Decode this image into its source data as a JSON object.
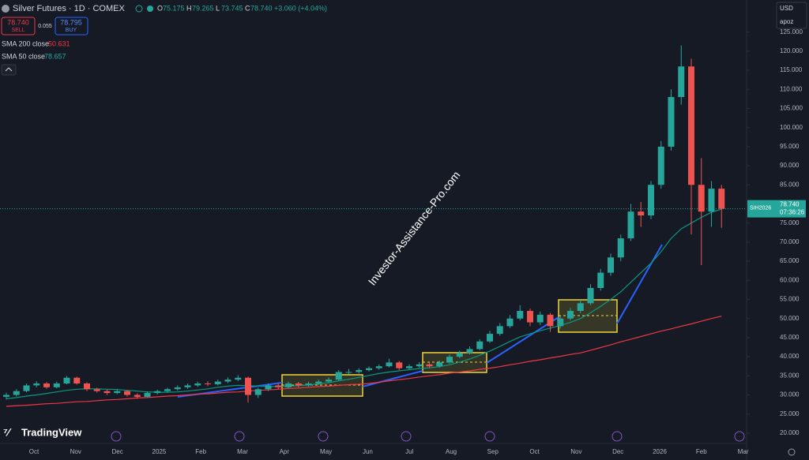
{
  "header": {
    "symbol": "Silver Futures · 1D · COMEX",
    "ohlc": [
      {
        "label": "O",
        "value": "75.175"
      },
      {
        "label": "H",
        "value": "79.265"
      },
      {
        "label": "L",
        "value": "73.745"
      },
      {
        "label": "C",
        "value": "78.740"
      }
    ],
    "change": "+3.060 (+4.04%)"
  },
  "trade": {
    "sell_price": "78.740",
    "sell": "SELL",
    "spread": "0.055",
    "buy_price": "78.795",
    "buy": "BUY"
  },
  "indicator_values": [
    "50.631",
    "78.657"
  ],
  "watermark": "Investor-Assistance-Pro.com",
  "currency": "USD",
  "account": "apoz",
  "last_price_box": {
    "symbol": "SIH2026",
    "price": "78.740",
    "countdown": "07:36:26"
  },
  "brand": "TradingView",
  "chart_data": {
    "type": "candlestick",
    "ylim": [
      17.3,
      133.4
    ],
    "yticks": [
      {
        "value": 20,
        "label": "20.000"
      },
      {
        "value": 25,
        "label": "25.000"
      },
      {
        "value": 30,
        "label": "30.000"
      },
      {
        "value": 35,
        "label": "35.000"
      },
      {
        "value": 40,
        "label": "40.000"
      },
      {
        "value": 45,
        "label": "45.000"
      },
      {
        "value": 50,
        "label": "50.000"
      },
      {
        "value": 55,
        "label": "55.000"
      },
      {
        "value": 60,
        "label": "60.000"
      },
      {
        "value": 65,
        "label": "65.000"
      },
      {
        "value": 70,
        "label": "70.000"
      },
      {
        "value": 75,
        "label": "75.000"
      },
      {
        "value": 80,
        "label": "80.000"
      },
      {
        "value": 85,
        "label": "85.000"
      },
      {
        "value": 90,
        "label": "90.000"
      },
      {
        "value": 95,
        "label": "95.000"
      },
      {
        "value": 100,
        "label": "100.000"
      },
      {
        "value": 105,
        "label": "105.000"
      },
      {
        "value": 110,
        "label": "110.000"
      },
      {
        "value": 115,
        "label": "115.000"
      },
      {
        "value": 120,
        "label": "120.000"
      },
      {
        "value": 125,
        "label": "125.000"
      }
    ],
    "time_labels": [
      "Oct",
      "Nov",
      "Dec",
      "2025",
      "Feb",
      "Mar",
      "Apr",
      "May",
      "Jun",
      "Jul",
      "Aug",
      "Sep",
      "Oct",
      "Nov",
      "Dec",
      "2026",
      "Feb",
      "Mar"
    ],
    "up_color": "#26a69a",
    "down_color": "#ef5350",
    "last_price": 78.74,
    "candles": [
      [
        29.5,
        30.6,
        28.8,
        30
      ],
      [
        30,
        31.5,
        29.6,
        31
      ],
      [
        31,
        33,
        30.7,
        32.5
      ],
      [
        32.5,
        33.6,
        32,
        33
      ],
      [
        33,
        33.4,
        31.6,
        32
      ],
      [
        32,
        33.5,
        31.7,
        33
      ],
      [
        33,
        35,
        32.8,
        34.5
      ],
      [
        34.5,
        34.8,
        32.7,
        33
      ],
      [
        33,
        33.3,
        31,
        31.5
      ],
      [
        31.5,
        31.9,
        30.6,
        31
      ],
      [
        31,
        31.4,
        30,
        30.5
      ],
      [
        30.5,
        31.6,
        30.2,
        31
      ],
      [
        31,
        31.3,
        29.6,
        30
      ],
      [
        30,
        30.4,
        29,
        29.5
      ],
      [
        29.5,
        30.9,
        29.3,
        30.5
      ],
      [
        30.5,
        31.4,
        30.1,
        31
      ],
      [
        31,
        31.9,
        30.6,
        31.5
      ],
      [
        31.5,
        32.5,
        31.1,
        32
      ],
      [
        32,
        33,
        31.6,
        32.5
      ],
      [
        32.5,
        33.5,
        32.1,
        33
      ],
      [
        33,
        33.6,
        32.3,
        32.8
      ],
      [
        32.8,
        34,
        32.5,
        33.5
      ],
      [
        33.5,
        34.6,
        33.1,
        34
      ],
      [
        34,
        35.2,
        33.6,
        34.5
      ],
      [
        34.5,
        34.8,
        28,
        30
      ],
      [
        30,
        31.9,
        29.2,
        31.5
      ],
      [
        31.5,
        33,
        31,
        32.5
      ],
      [
        32.5,
        33,
        31.5,
        32
      ],
      [
        32,
        33.5,
        31.6,
        33
      ],
      [
        33,
        33.4,
        32,
        32.5
      ],
      [
        32.5,
        33.5,
        32.1,
        33
      ],
      [
        33,
        34,
        32.6,
        33.5
      ],
      [
        33.5,
        34.6,
        33.1,
        34
      ],
      [
        34,
        36.5,
        33.8,
        36
      ],
      [
        36,
        36.8,
        35.4,
        36
      ],
      [
        36,
        37,
        35.6,
        36.5
      ],
      [
        36.5,
        37.5,
        36.1,
        37
      ],
      [
        37,
        38,
        36.6,
        37.5
      ],
      [
        37.5,
        39.5,
        37.2,
        38.5
      ],
      [
        38.5,
        38.9,
        36.5,
        37
      ],
      [
        37,
        38,
        36.6,
        37.5
      ],
      [
        37.5,
        38.6,
        37.1,
        38
      ],
      [
        38,
        38.4,
        37,
        37.5
      ],
      [
        37.5,
        39,
        37.1,
        38.5
      ],
      [
        38.5,
        40.6,
        38.2,
        40
      ],
      [
        40,
        41.6,
        39.6,
        41
      ],
      [
        41,
        42.7,
        40.6,
        42
      ],
      [
        42,
        44.6,
        41.7,
        44
      ],
      [
        44,
        46.8,
        43.6,
        46
      ],
      [
        46,
        48.8,
        45.5,
        48
      ],
      [
        48,
        50.9,
        47.5,
        50
      ],
      [
        50,
        53.5,
        49.5,
        52
      ],
      [
        52,
        52.6,
        48,
        49
      ],
      [
        49,
        51.8,
        48.3,
        51
      ],
      [
        51,
        51.5,
        46.5,
        48
      ],
      [
        48,
        50.7,
        47.4,
        50
      ],
      [
        50,
        52.8,
        49.5,
        52
      ],
      [
        52,
        54.9,
        51.4,
        54
      ],
      [
        54,
        59,
        53.5,
        58
      ],
      [
        58,
        63,
        57.3,
        62
      ],
      [
        62,
        67,
        61.2,
        66
      ],
      [
        66,
        72,
        65,
        71
      ],
      [
        71,
        80,
        70.3,
        78
      ],
      [
        78,
        80.5,
        74,
        77
      ],
      [
        77,
        86,
        76,
        85
      ],
      [
        85,
        96.5,
        84,
        95
      ],
      [
        95,
        110,
        94,
        108
      ],
      [
        108,
        121.5,
        106,
        116
      ],
      [
        116,
        118,
        72,
        85
      ],
      [
        85,
        92,
        64,
        78
      ],
      [
        78,
        86,
        74,
        84
      ],
      [
        84,
        85,
        73.745,
        78.74
      ]
    ],
    "series": [
      {
        "name": "SMA 200 close",
        "color": "#f23645",
        "values": [
          27,
          27.2,
          27.3,
          27.5,
          27.7,
          27.8,
          28,
          28.2,
          28.3,
          28.5,
          28.7,
          28.8,
          29,
          29.2,
          29.3,
          29.5,
          29.7,
          29.8,
          30,
          30.2,
          30.3,
          30.5,
          30.7,
          30.8,
          31,
          31.2,
          31.3,
          31.5,
          31.7,
          31.8,
          32,
          32.2,
          32.3,
          32.5,
          32.7,
          32.8,
          33,
          33.3,
          33.7,
          34,
          34.3,
          34.7,
          35,
          35.3,
          35.7,
          36,
          36.3,
          36.7,
          37,
          37.4,
          37.9,
          38.3,
          38.8,
          39.2,
          39.7,
          40.1,
          40.6,
          41,
          41.7,
          42.4,
          43.1,
          43.9,
          44.6,
          45.3,
          46,
          46.7,
          47.3,
          48,
          48.6,
          49.3,
          50,
          50.631
        ]
      },
      {
        "name": "SMA 50 close",
        "color": "#089981",
        "values": [
          29,
          29.3,
          29.7,
          30,
          30.4,
          30.8,
          31.2,
          31.5,
          31.6,
          31.6,
          31.5,
          31.4,
          31.2,
          31,
          30.8,
          30.7,
          30.7,
          30.8,
          31,
          31.3,
          31.6,
          32,
          32.3,
          32.5,
          32.4,
          32.3,
          32.2,
          32.2,
          32.3,
          32.4,
          32.6,
          32.9,
          33.2,
          33.7,
          34.1,
          34.6,
          35.1,
          35.6,
          36,
          36.3,
          36.6,
          36.9,
          37.1,
          37.4,
          37.9,
          38.6,
          39.4,
          40.4,
          41.5,
          42.7,
          44,
          45.2,
          46,
          46.8,
          47.5,
          48.2,
          49,
          50,
          51.5,
          53.2,
          55,
          57,
          59.5,
          62,
          64.5,
          67.5,
          71,
          73.5,
          75,
          76.5,
          77.8,
          78.657
        ]
      }
    ]
  }
}
